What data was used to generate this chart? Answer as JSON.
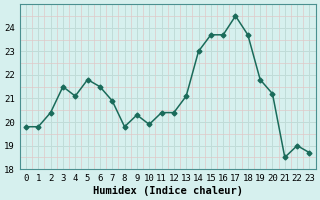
{
  "x": [
    0,
    1,
    2,
    3,
    4,
    5,
    6,
    7,
    8,
    9,
    10,
    11,
    12,
    13,
    14,
    15,
    16,
    17,
    18,
    19,
    20,
    21,
    22,
    23
  ],
  "y": [
    19.8,
    19.8,
    20.4,
    21.5,
    21.1,
    21.8,
    21.5,
    20.9,
    19.8,
    20.3,
    19.9,
    20.4,
    20.4,
    21.1,
    23.0,
    23.7,
    23.7,
    24.5,
    23.7,
    21.8,
    21.2,
    18.5,
    19.0,
    18.7
  ],
  "line_color": "#1a6b5a",
  "marker": "D",
  "markersize": 2.5,
  "linewidth": 1.1,
  "bg_color": "#d6f0ee",
  "grid_color_major": "#c0dcd8",
  "grid_color_minor": "#e0c8c8",
  "xlabel": "Humidex (Indice chaleur)",
  "xlim": [
    -0.5,
    23.5
  ],
  "ylim": [
    18,
    25.0
  ],
  "yticks": [
    18,
    19,
    20,
    21,
    22,
    23,
    24
  ],
  "xticks": [
    0,
    1,
    2,
    3,
    4,
    5,
    6,
    7,
    8,
    9,
    10,
    11,
    12,
    13,
    14,
    15,
    16,
    17,
    18,
    19,
    20,
    21,
    22,
    23
  ],
  "xlabel_fontsize": 7.5,
  "tick_fontsize": 6.5
}
